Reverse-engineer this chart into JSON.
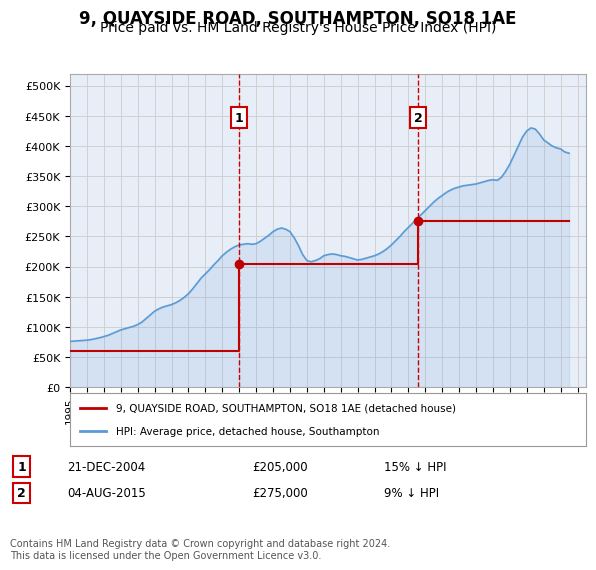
{
  "title": "9, QUAYSIDE ROAD, SOUTHAMPTON, SO18 1AE",
  "subtitle": "Price paid vs. HM Land Registry's House Price Index (HPI)",
  "title_fontsize": 12,
  "subtitle_fontsize": 10,
  "bg_color": "#e8eef8",
  "plot_bg_color": "#e8eef8",
  "fig_bg_color": "#ffffff",
  "ylabel_ticks": [
    "£0",
    "£50K",
    "£100K",
    "£150K",
    "£200K",
    "£250K",
    "£300K",
    "£350K",
    "£400K",
    "£450K",
    "£500K"
  ],
  "ytick_values": [
    0,
    50000,
    100000,
    150000,
    200000,
    250000,
    300000,
    350000,
    400000,
    450000,
    500000
  ],
  "ylim": [
    0,
    520000
  ],
  "xlim_start": 1995.0,
  "xlim_end": 2025.5,
  "sale1_x": 2004.97,
  "sale1_y": 205000,
  "sale1_label": "21-DEC-2004",
  "sale1_price": "£205,000",
  "sale1_hpi": "15% ↓ HPI",
  "sale2_x": 2015.58,
  "sale2_y": 275000,
  "sale2_label": "04-AUG-2015",
  "sale2_price": "£275,000",
  "sale2_hpi": "9% ↓ HPI",
  "hpi_color": "#5b9bd5",
  "price_color": "#c00000",
  "marker_box_color": "#cc0000",
  "dashed_line_color": "#cc0000",
  "legend_line1": "9, QUAYSIDE ROAD, SOUTHAMPTON, SO18 1AE (detached house)",
  "legend_line2": "HPI: Average price, detached house, Southampton",
  "footer": "Contains HM Land Registry data © Crown copyright and database right 2024.\nThis data is licensed under the Open Government Licence v3.0.",
  "footer_fontsize": 7,
  "hpi_data_x": [
    1995.0,
    1995.25,
    1995.5,
    1995.75,
    1996.0,
    1996.25,
    1996.5,
    1996.75,
    1997.0,
    1997.25,
    1997.5,
    1997.75,
    1998.0,
    1998.25,
    1998.5,
    1998.75,
    1999.0,
    1999.25,
    1999.5,
    1999.75,
    2000.0,
    2000.25,
    2000.5,
    2000.75,
    2001.0,
    2001.25,
    2001.5,
    2001.75,
    2002.0,
    2002.25,
    2002.5,
    2002.75,
    2003.0,
    2003.25,
    2003.5,
    2003.75,
    2004.0,
    2004.25,
    2004.5,
    2004.75,
    2005.0,
    2005.25,
    2005.5,
    2005.75,
    2006.0,
    2006.25,
    2006.5,
    2006.75,
    2007.0,
    2007.25,
    2007.5,
    2007.75,
    2008.0,
    2008.25,
    2008.5,
    2008.75,
    2009.0,
    2009.25,
    2009.5,
    2009.75,
    2010.0,
    2010.25,
    2010.5,
    2010.75,
    2011.0,
    2011.25,
    2011.5,
    2011.75,
    2012.0,
    2012.25,
    2012.5,
    2012.75,
    2013.0,
    2013.25,
    2013.5,
    2013.75,
    2014.0,
    2014.25,
    2014.5,
    2014.75,
    2015.0,
    2015.25,
    2015.5,
    2015.75,
    2016.0,
    2016.25,
    2016.5,
    2016.75,
    2017.0,
    2017.25,
    2017.5,
    2017.75,
    2018.0,
    2018.25,
    2018.5,
    2018.75,
    2019.0,
    2019.25,
    2019.5,
    2019.75,
    2020.0,
    2020.25,
    2020.5,
    2020.75,
    2021.0,
    2021.25,
    2021.5,
    2021.75,
    2022.0,
    2022.25,
    2022.5,
    2022.75,
    2023.0,
    2023.25,
    2023.5,
    2023.75,
    2024.0,
    2024.25,
    2024.5
  ],
  "hpi_data_y": [
    76000,
    76500,
    77000,
    77500,
    78000,
    79000,
    80500,
    82000,
    84000,
    86000,
    89000,
    92000,
    95000,
    97000,
    99000,
    101000,
    104000,
    108000,
    114000,
    120000,
    126000,
    130000,
    133000,
    135000,
    137000,
    140000,
    144000,
    149000,
    155000,
    163000,
    172000,
    181000,
    188000,
    195000,
    203000,
    210000,
    218000,
    224000,
    229000,
    233000,
    236000,
    237000,
    238000,
    237000,
    238000,
    242000,
    247000,
    252000,
    258000,
    262000,
    264000,
    262000,
    258000,
    248000,
    235000,
    220000,
    210000,
    208000,
    210000,
    213000,
    218000,
    220000,
    221000,
    220000,
    218000,
    217000,
    215000,
    213000,
    211000,
    212000,
    214000,
    216000,
    218000,
    221000,
    225000,
    230000,
    236000,
    243000,
    250000,
    258000,
    265000,
    272000,
    279000,
    286000,
    293000,
    300000,
    307000,
    313000,
    318000,
    323000,
    327000,
    330000,
    332000,
    334000,
    335000,
    336000,
    337000,
    339000,
    341000,
    343000,
    344000,
    343000,
    348000,
    358000,
    370000,
    385000,
    400000,
    415000,
    425000,
    430000,
    428000,
    420000,
    410000,
    405000,
    400000,
    397000,
    395000,
    390000,
    388000
  ],
  "price_data_x": [
    1995.0,
    2004.97,
    2004.97,
    2015.58,
    2015.58,
    2024.5
  ],
  "price_data_y": [
    60000,
    60000,
    205000,
    205000,
    275000,
    275000
  ]
}
